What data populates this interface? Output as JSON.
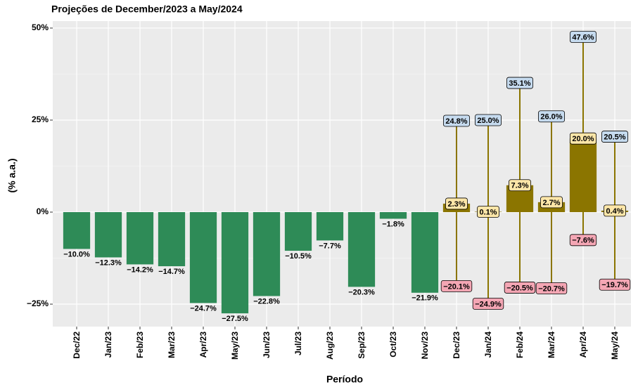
{
  "chart_data": {
    "type": "bar",
    "title": "Projeções de December/2023 a May/2024",
    "xlabel": "Período",
    "ylabel": "(% a.a.)",
    "categories": [
      "Dec/22",
      "Jan/23",
      "Feb/23",
      "Mar/23",
      "Apr/23",
      "May/23",
      "Jun/23",
      "Jul/23",
      "Aug/23",
      "Sep/23",
      "Oct/23",
      "Nov/23",
      "Dec/23",
      "Jan/24",
      "Feb/24",
      "Mar/24",
      "Apr/24",
      "May/24"
    ],
    "ylim": [
      -31.1,
      51.9
    ],
    "yticks": [
      {
        "value": -25,
        "label": "−25%"
      },
      {
        "value": 0,
        "label": "0%"
      },
      {
        "value": 25,
        "label": "25%"
      },
      {
        "value": 50,
        "label": "50%"
      }
    ],
    "grid": true,
    "series": [
      {
        "color": "#2e8b57",
        "values": [
          -10.0,
          -12.3,
          -14.2,
          -14.7,
          -24.7,
          -27.5,
          -22.8,
          -10.5,
          -7.7,
          -20.3,
          -1.8,
          -21.9,
          null,
          null,
          null,
          null,
          null,
          null
        ],
        "value_labels": [
          "−10.0%",
          "−12.3%",
          "−14.2%",
          "−14.7%",
          "−24.7%",
          "−27.5%",
          "−22.8%",
          "−10.5%",
          "−7.7%",
          "−20.3%",
          "−1.8%",
          "−21.9%",
          null,
          null,
          null,
          null,
          null,
          null
        ]
      },
      {
        "color": "#8b7500",
        "values": [
          null,
          null,
          null,
          null,
          null,
          null,
          null,
          null,
          null,
          null,
          null,
          null,
          2.3,
          0.1,
          7.3,
          2.7,
          20.0,
          0.4
        ],
        "value_labels": [
          null,
          null,
          null,
          null,
          null,
          null,
          null,
          null,
          null,
          null,
          null,
          null,
          "2.3%",
          "0.1%",
          "7.3%",
          "2.7%",
          "20.0%",
          "0.4%"
        ],
        "upper": [
          null,
          null,
          null,
          null,
          null,
          null,
          null,
          null,
          null,
          null,
          null,
          null,
          24.8,
          25.0,
          35.1,
          26.0,
          47.6,
          20.5
        ],
        "upper_labels": [
          null,
          null,
          null,
          null,
          null,
          null,
          null,
          null,
          null,
          null,
          null,
          null,
          "24.8%",
          "25.0%",
          "35.1%",
          "26.0%",
          "47.6%",
          "20.5%"
        ],
        "lower": [
          null,
          null,
          null,
          null,
          null,
          null,
          null,
          null,
          null,
          null,
          null,
          null,
          -20.1,
          -24.9,
          -20.5,
          -20.7,
          -7.6,
          -19.7
        ],
        "lower_labels": [
          null,
          null,
          null,
          null,
          null,
          null,
          null,
          null,
          null,
          null,
          null,
          null,
          "−20.1%",
          "−24.9%",
          "−20.5%",
          "−20.7%",
          "−7.6%",
          "−19.7%"
        ]
      }
    ]
  }
}
